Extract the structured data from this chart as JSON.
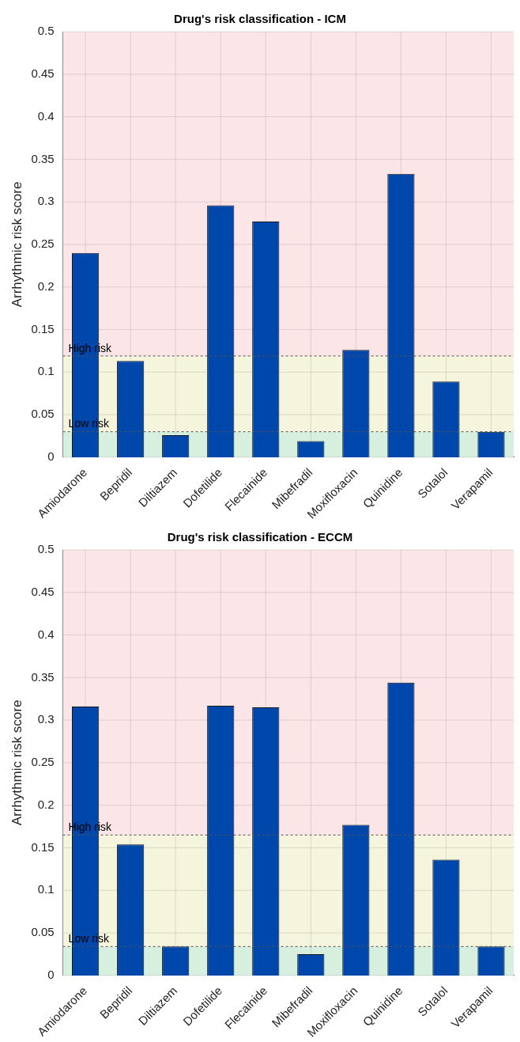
{
  "chart_data": [
    {
      "type": "bar",
      "title": "Drug's risk classification - ICM",
      "ylabel": "Arrhythmic risk score",
      "categories": [
        "Amiodarone",
        "Bepridil",
        "Diltiazem",
        "Dofetilide",
        "Flecainide",
        "Mibefradil",
        "Moxifloxacin",
        "Quinidine",
        "Sotalol",
        "Verapamil"
      ],
      "values": [
        0.24,
        0.113,
        0.026,
        0.296,
        0.277,
        0.019,
        0.126,
        0.333,
        0.089,
        0.03
      ],
      "color": "#0047ab",
      "ylim": [
        0,
        0.5
      ],
      "yticks": [
        0,
        0.05,
        0.1,
        0.15,
        0.2,
        0.25,
        0.3,
        0.35,
        0.4,
        0.45,
        0.5
      ],
      "grid": true,
      "bands": [
        {
          "axis": "y",
          "from": 0,
          "to": 0.03,
          "color": "#d6efdf"
        },
        {
          "axis": "y",
          "from": 0.03,
          "to": 0.119,
          "color": "#f5f4dc"
        },
        {
          "axis": "y",
          "from": 0.119,
          "to": 0.5,
          "color": "#fbe5e6"
        }
      ],
      "ref_lines": [
        {
          "axis": "y",
          "value": 0.119,
          "label": "High risk",
          "line_style": "dashed",
          "color": "#555555"
        },
        {
          "axis": "y",
          "value": 0.03,
          "label": "Low risk",
          "line_style": "dashed",
          "color": "#555555"
        }
      ]
    },
    {
      "type": "bar",
      "title": "Drug's risk classification - ECCM",
      "ylabel": "Arrhythmic risk score",
      "categories": [
        "Amiodarone",
        "Bepridil",
        "Diltiazem",
        "Dofetilide",
        "Flecainide",
        "Mibefradil",
        "Moxifloxacin",
        "Quinidine",
        "Sotalol",
        "Verapamil"
      ],
      "values": [
        0.316,
        0.154,
        0.034,
        0.317,
        0.315,
        0.025,
        0.177,
        0.344,
        0.136,
        0.034
      ],
      "color": "#0047ab",
      "ylim": [
        0,
        0.5
      ],
      "yticks": [
        0,
        0.05,
        0.1,
        0.15,
        0.2,
        0.25,
        0.3,
        0.35,
        0.4,
        0.45,
        0.5
      ],
      "grid": true,
      "bands": [
        {
          "axis": "y",
          "from": 0,
          "to": 0.034,
          "color": "#d6efdf"
        },
        {
          "axis": "y",
          "from": 0.034,
          "to": 0.165,
          "color": "#f5f4dc"
        },
        {
          "axis": "y",
          "from": 0.165,
          "to": 0.5,
          "color": "#fbe5e6"
        }
      ],
      "ref_lines": [
        {
          "axis": "y",
          "value": 0.165,
          "label": "High risk",
          "line_style": "dashed",
          "color": "#555555"
        },
        {
          "axis": "y",
          "value": 0.034,
          "label": "Low risk",
          "line_style": "dashed",
          "color": "#555555"
        }
      ]
    }
  ]
}
